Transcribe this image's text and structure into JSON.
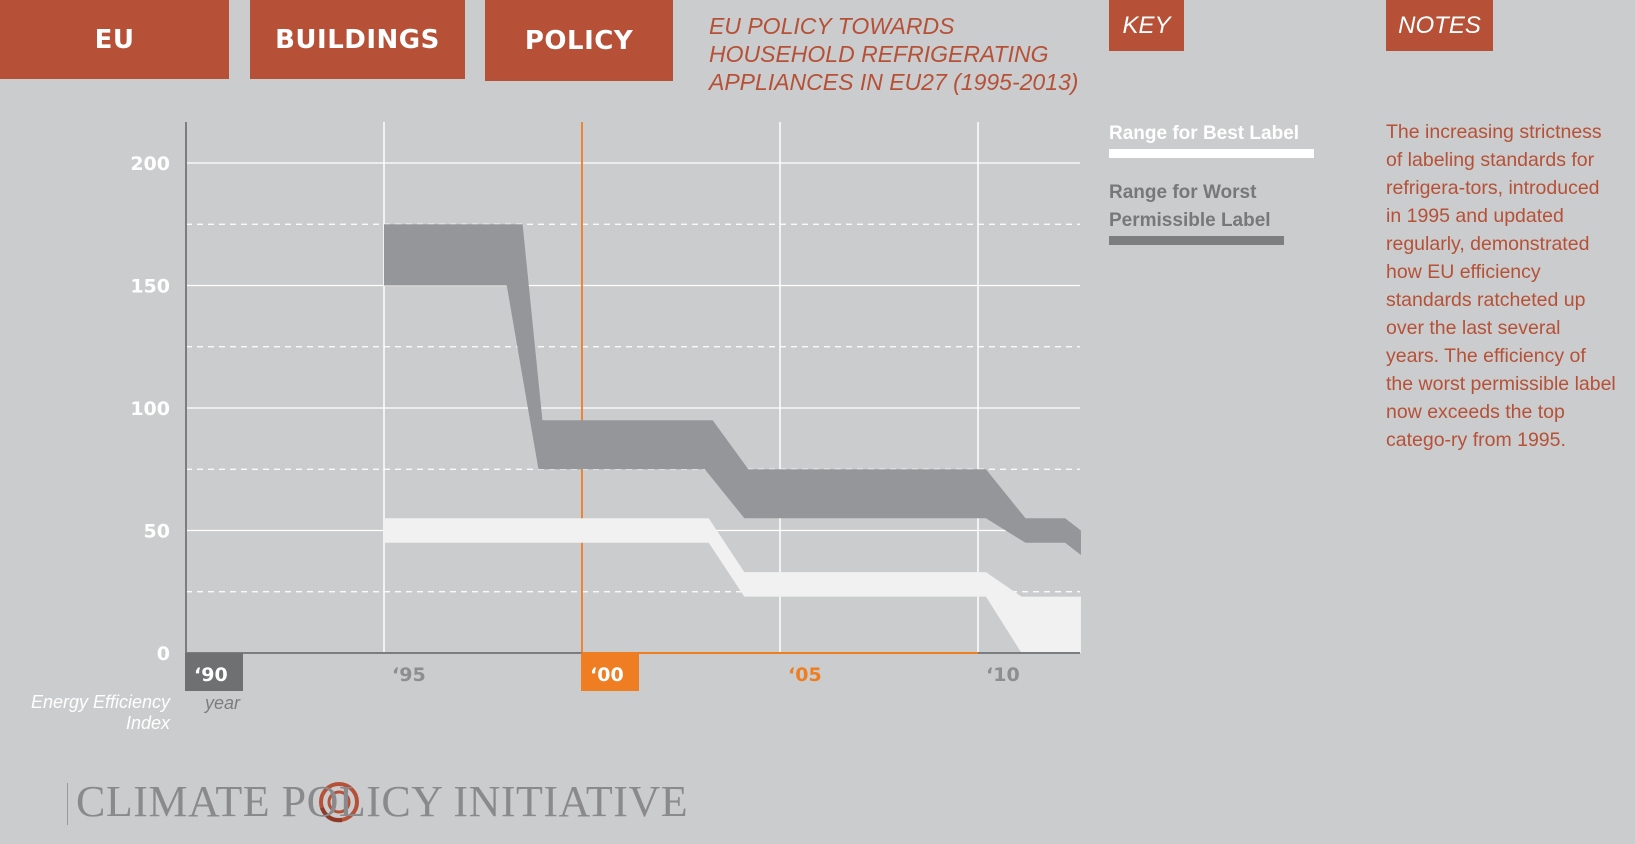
{
  "tabs": {
    "eu": "EU",
    "buildings": "BUILDINGS",
    "policy": "POLICY"
  },
  "title": "EU POLICY TOWARDS HOUSEHOLD REFRIGERATING APPLIANCES IN EU27 (1995-2013)",
  "key": {
    "tab": "KEY",
    "best_label": "Range for Best Label",
    "worst_label": "Range for Worst Permissible Label",
    "best_color": "#ffffff",
    "worst_color": "#7d7e80"
  },
  "notes": {
    "tab": "NOTES",
    "text": "The increasing strictness of labeling standards for refrigera-tors, introduced in 1995 and updated regularly, demonstrated how EU efficiency standards ratcheted up over the last several years. The efficiency of the worst permissible label now exceeds the top catego-ry from 1995."
  },
  "chart_data": {
    "type": "area",
    "xlabel": "year",
    "ylabel": "Energy Efficiency Index",
    "xlim": [
      1990,
      2012.6
    ],
    "ylim": [
      0,
      210
    ],
    "y_ticks": [
      0,
      50,
      100,
      150,
      200
    ],
    "y_dashed": [
      25,
      75,
      125,
      175
    ],
    "x_ticks": [
      {
        "year": 1990,
        "label": "‘90",
        "style": "gray-box"
      },
      {
        "year": 1995,
        "label": "‘95",
        "style": "plain"
      },
      {
        "year": 2000,
        "label": "‘00",
        "style": "orange-box"
      },
      {
        "year": 2005,
        "label": "‘05",
        "style": "orange-text"
      },
      {
        "year": 2010,
        "label": "‘10",
        "style": "plain"
      }
    ],
    "highlight_year": 2000,
    "highlight_color": "#ef7d22",
    "series": [
      {
        "name": "Range for Worst Permissible Label",
        "color": "#95969a",
        "upper": [
          [
            1995,
            175
          ],
          [
            1998.5,
            175
          ],
          [
            1999,
            95
          ],
          [
            2003.3,
            95
          ],
          [
            2004.2,
            75
          ],
          [
            2010.2,
            75
          ],
          [
            2011.2,
            55
          ],
          [
            2012.2,
            55
          ],
          [
            2012.6,
            50
          ]
        ],
        "lower": [
          [
            1995,
            150
          ],
          [
            1998.1,
            150
          ],
          [
            1998.9,
            75
          ],
          [
            2003.1,
            75
          ],
          [
            2004.1,
            55
          ],
          [
            2010.2,
            55
          ],
          [
            2011.2,
            45
          ],
          [
            2012.2,
            45
          ],
          [
            2012.6,
            40
          ]
        ]
      },
      {
        "name": "Range for Best Label",
        "color": "#f0f1f0",
        "upper": [
          [
            1995,
            55
          ],
          [
            2003.2,
            55
          ],
          [
            2004.1,
            33
          ],
          [
            2010.2,
            33
          ],
          [
            2011.1,
            23
          ],
          [
            2012.6,
            23
          ]
        ],
        "lower": [
          [
            1995,
            45
          ],
          [
            2003.2,
            45
          ],
          [
            2004.1,
            23
          ],
          [
            2010.2,
            23
          ],
          [
            2011.1,
            0
          ],
          [
            2012.6,
            0
          ]
        ]
      }
    ]
  },
  "logo": {
    "text": "CLIMATE POLICY INITIATIVE",
    "icon": "cpi-swirl-icon",
    "color": "#b65138"
  }
}
